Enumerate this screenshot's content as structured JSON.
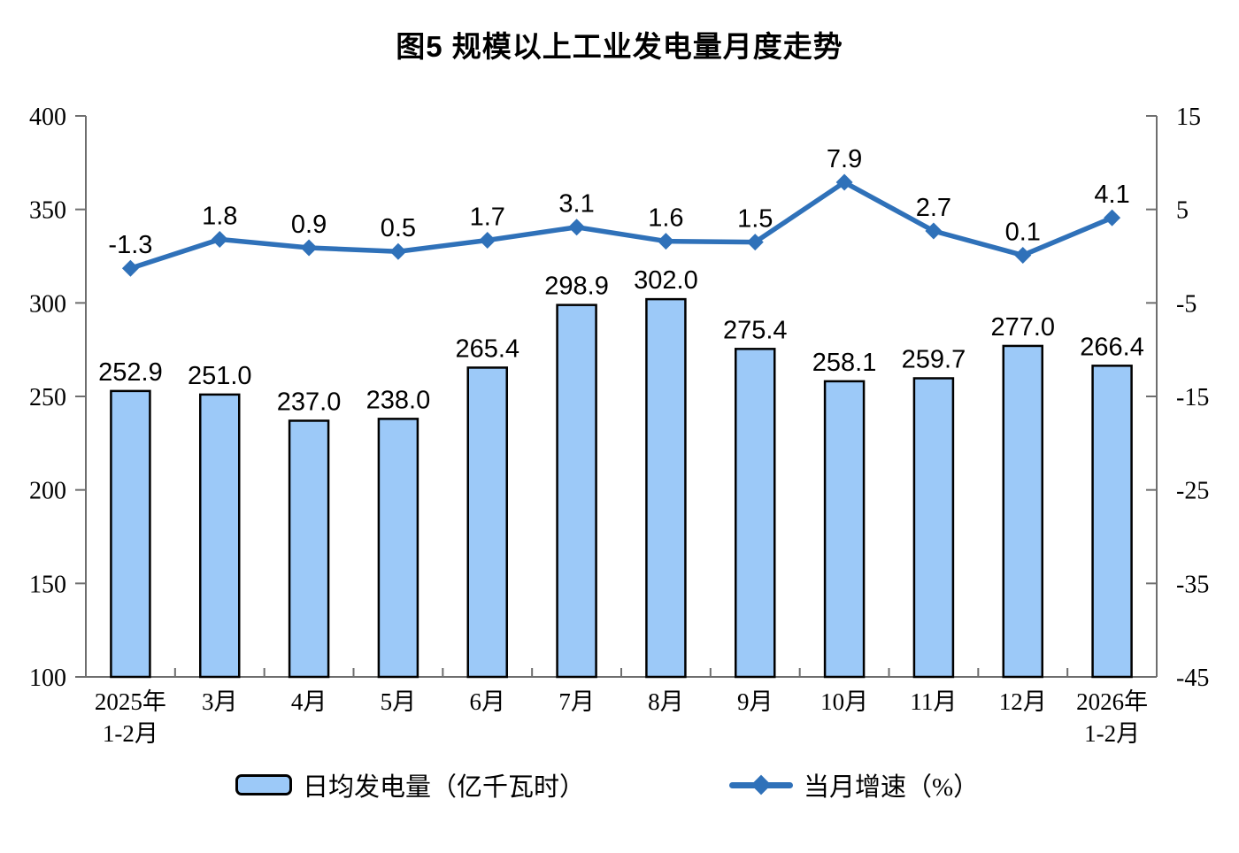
{
  "figure": {
    "title": "图5 规模以上工业发电量月度走势"
  },
  "chart_data": {
    "type": "combo-bar-line",
    "title": "图5 规模以上工业发电量月度走势",
    "categories": [
      [
        "2025年",
        "1-2月"
      ],
      [
        "3月"
      ],
      [
        "4月"
      ],
      [
        "5月"
      ],
      [
        "6月"
      ],
      [
        "7月"
      ],
      [
        "8月"
      ],
      [
        "9月"
      ],
      [
        "10月"
      ],
      [
        "11月"
      ],
      [
        "12月"
      ],
      [
        "2026年",
        "1-2月"
      ]
    ],
    "series": [
      {
        "name": "日均发电量（亿千瓦时）",
        "type": "bar",
        "axis": "left",
        "values": [
          252.9,
          251.0,
          237.0,
          238.0,
          265.4,
          298.9,
          302.0,
          275.4,
          258.1,
          259.7,
          277.0,
          266.4
        ],
        "labels": [
          "252.9",
          "251.0",
          "237.0",
          "238.0",
          "265.4",
          "298.9",
          "302.0",
          "275.4",
          "258.1",
          "259.7",
          "277.0",
          "266.4"
        ]
      },
      {
        "name": "当月增速（%）",
        "type": "line",
        "axis": "right",
        "values": [
          -1.3,
          1.8,
          0.9,
          0.5,
          1.7,
          3.1,
          1.6,
          1.5,
          7.9,
          2.7,
          0.1,
          4.1
        ],
        "labels": [
          "-1.3",
          "1.8",
          "0.9",
          "0.5",
          "1.7",
          "3.1",
          "1.6",
          "1.5",
          "7.9",
          "2.7",
          "0.1",
          "4.1"
        ]
      }
    ],
    "left_axis": {
      "min": 100,
      "max": 400,
      "step": 50,
      "tick_labels": [
        "400",
        "350",
        "300",
        "250",
        "200",
        "150",
        "100"
      ]
    },
    "right_axis": {
      "min": -45,
      "max": 15,
      "step": 10,
      "tick_labels": [
        "15",
        "5",
        "-5",
        "-15",
        "-25",
        "-35",
        "-45"
      ]
    },
    "grid": false,
    "legend_position": "bottom",
    "colors": {
      "bar_fill": "#9CC9F8",
      "bar_border": "#000000",
      "line": "#2F71B9",
      "axis": "#6E6E6E",
      "text": "#000000"
    }
  },
  "legend": {
    "items": [
      {
        "label": "日均发电量（亿千瓦时）"
      },
      {
        "label": "当月增速（%）"
      }
    ]
  }
}
